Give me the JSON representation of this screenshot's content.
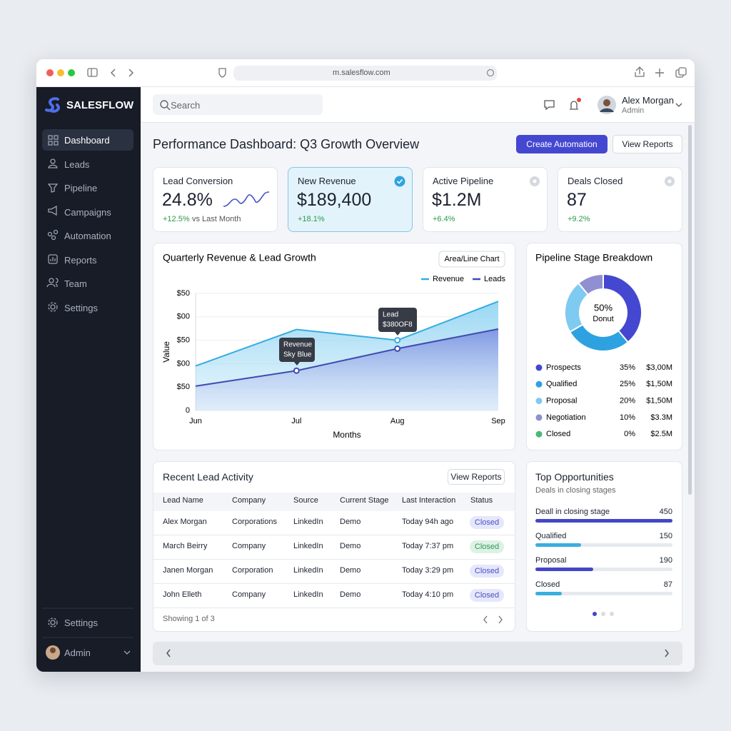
{
  "browser": {
    "url": "m.salesflow.com"
  },
  "sidebar": {
    "brand": "SALESFLOW",
    "nav": [
      "Dashboard",
      "Leads",
      "Pipeline",
      "Campaigns",
      "Automation",
      "Reports",
      "Team",
      "Settings"
    ],
    "footer_settings": "Settings",
    "user": "Admin"
  },
  "topbar": {
    "search": "Search",
    "user_name": "Alex Morgan",
    "user_role": "Admin"
  },
  "page": {
    "title": "Performance Dashboard: Q3 Growth Overview",
    "primary_button": "Create Automation",
    "secondary_button": "View Reports"
  },
  "kpis": [
    {
      "label": "Lead Conversion",
      "value": "24.8%",
      "change": "+12.5%",
      "note": "vs Last Month"
    },
    {
      "label": "New Revenue",
      "value": "$189,400",
      "change": "+18.1%"
    },
    {
      "label": "Active Pipeline",
      "value": "$1.2M",
      "change": "+6.4%"
    },
    {
      "label": "Deals Closed",
      "value": "87",
      "change": "+9.2%"
    }
  ],
  "chart_data": [
    {
      "type": "area",
      "title": "Quarterly Revenue & Lead Growth",
      "badge": "Area/Line Chart",
      "x_label": "Months",
      "y_label": "Value",
      "categories": [
        "Jun",
        "Jul",
        "Aug",
        "Sep"
      ],
      "series": [
        {
          "name": "Revenue",
          "color": "#35ade0",
          "values": [
            95,
            173,
            150,
            233
          ]
        },
        {
          "name": "Leads",
          "color": "#3f4bb0",
          "values": [
            52,
            85,
            132,
            174
          ]
        }
      ],
      "ylim": [
        0,
        250
      ],
      "yticks": [
        0,
        {
          "value": 50,
          "label": "$50"
        },
        {
          "value": 100,
          "label": "$00"
        },
        {
          "value": 150,
          "label": "$50"
        },
        {
          "value": 200,
          "label": "$00"
        },
        {
          "value": 250,
          "label": "$50"
        }
      ],
      "grid": true,
      "legend": "top-right",
      "annotations": [
        {
          "lines": [
            "Revenue",
            "Sky Blue"
          ]
        },
        {
          "lines": [
            "Lead",
            "$380OF8"
          ]
        }
      ]
    },
    {
      "type": "donut",
      "title": "Pipeline Stage Breakdown",
      "center_value": "50%",
      "center_label": "Donut",
      "categories": [
        "Prospects",
        "Qualified",
        "Proposal",
        "Negotiation",
        "Closed"
      ],
      "values": [
        35,
        25,
        20,
        10,
        0
      ],
      "value_labels": [
        "35%",
        "25%",
        "20%",
        "10%",
        "0%"
      ],
      "amounts": [
        "$3,00M",
        "$1,50M",
        "$1,50M",
        "$3.3M",
        "$2.5M"
      ],
      "colors": [
        "#4448d0",
        "#2ea2e0",
        "#7fcaf0",
        "#8f8fd2",
        "#4cb87a"
      ]
    }
  ],
  "table": {
    "title": "Recent Lead Activity",
    "button": "View Reports",
    "columns": [
      "Lead Name",
      "Company",
      "Source",
      "Current Stage",
      "Last Interaction",
      "Status"
    ],
    "rows": [
      [
        "Alex Morgan",
        "Corporations",
        "LinkedIn",
        "Demo",
        "Today 94h ago",
        "Closed"
      ],
      [
        "March Beirry",
        "Company",
        "LinkedIn",
        "Demo",
        "Today 7:37 pm",
        "Closed"
      ],
      [
        "Janen Morgan",
        "Corporation",
        "LinkedIn",
        "Demo",
        "Today 3:29 pm",
        "Closed"
      ],
      [
        "John Elleth",
        "Company",
        "LinkedIn",
        "Demo",
        "Today 4:10 pm",
        "Closed"
      ]
    ],
    "footer": "Showing 1 of 3"
  },
  "opportunities": {
    "title": "Top Opportunities",
    "subtitle": "Deals in closing stages",
    "items": [
      {
        "label": "Deall in closing stage",
        "value": 450,
        "color": "#4446c8"
      },
      {
        "label": "Qualified",
        "value": 150,
        "color": "#3aaee0"
      },
      {
        "label": "Proposal",
        "value": 190,
        "color": "#4446c8"
      },
      {
        "label": "Closed",
        "value": 87,
        "color": "#3aaee0"
      }
    ]
  }
}
